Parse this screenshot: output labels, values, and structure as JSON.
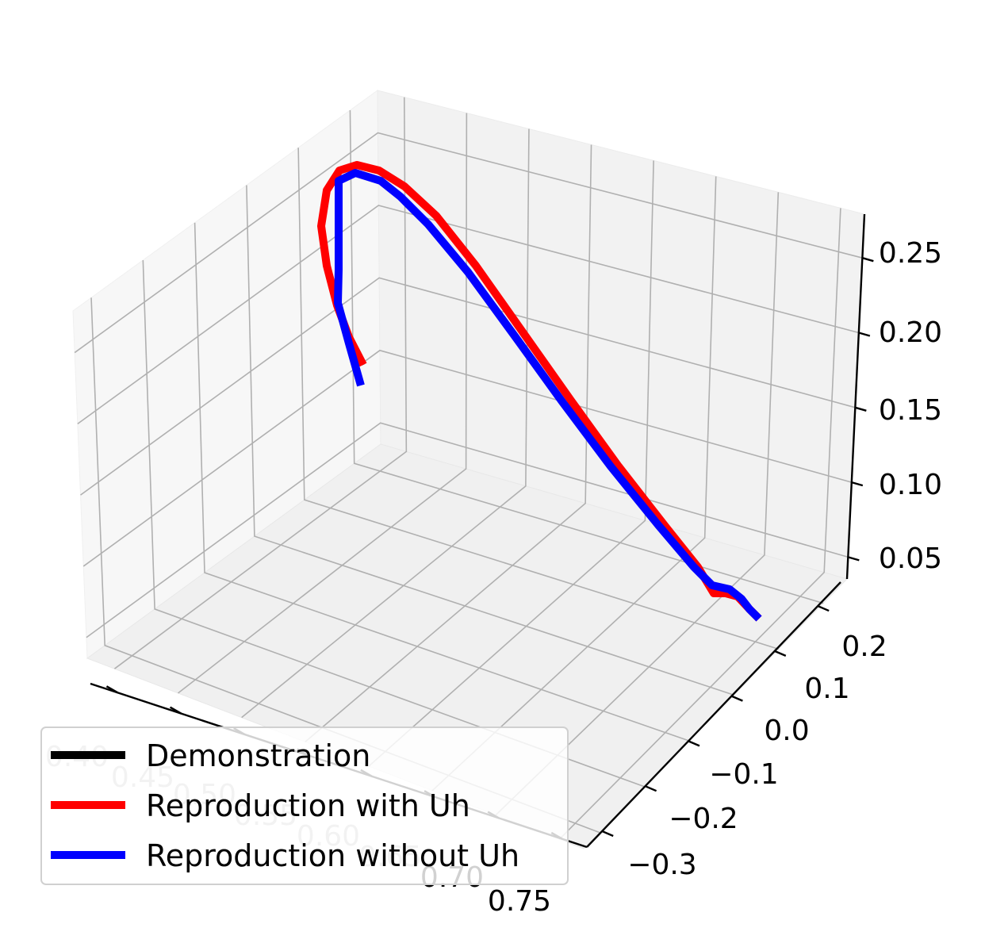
{
  "chart_data": {
    "type": "line",
    "projection": "3d",
    "title": "",
    "xlabel": "",
    "ylabel": "",
    "zlabel": "",
    "xlim": [
      0.38,
      0.77
    ],
    "ylim": [
      -0.34,
      0.24
    ],
    "zlim": [
      0.035,
      0.27
    ],
    "x_ticks": [
      "0.40",
      "0.45",
      "0.50",
      "0.55",
      "0.60",
      "0.65",
      "0.70",
      "0.75"
    ],
    "y_ticks": [
      "−0.3",
      "−0.2",
      "−0.1",
      "0.0",
      "0.1",
      "0.2"
    ],
    "z_ticks": [
      "0.05",
      "0.10",
      "0.15",
      "0.20",
      "0.25"
    ],
    "grid": true,
    "legend_position": "lower-left",
    "series": [
      {
        "name": "Demonstration",
        "color": "#000000",
        "points": [
          {
            "u": 458,
            "v": 460
          },
          {
            "u": 440,
            "v": 425
          },
          {
            "u": 425,
            "v": 385
          },
          {
            "u": 412,
            "v": 335
          },
          {
            "u": 405,
            "v": 285
          },
          {
            "u": 412,
            "v": 240
          },
          {
            "u": 428,
            "v": 215
          },
          {
            "u": 450,
            "v": 208
          },
          {
            "u": 478,
            "v": 215
          },
          {
            "u": 510,
            "v": 235
          },
          {
            "u": 550,
            "v": 272
          },
          {
            "u": 600,
            "v": 335
          },
          {
            "u": 660,
            "v": 420
          },
          {
            "u": 720,
            "v": 505
          },
          {
            "u": 780,
            "v": 588
          },
          {
            "u": 840,
            "v": 665
          },
          {
            "u": 880,
            "v": 715
          },
          {
            "u": 900,
            "v": 748
          },
          {
            "u": 915,
            "v": 748
          },
          {
            "u": 930,
            "v": 752
          },
          {
            "u": 945,
            "v": 768
          },
          {
            "u": 957,
            "v": 780
          }
        ]
      },
      {
        "name": "Reproduction with Uh",
        "color": "#ff0000",
        "points": [
          {
            "u": 458,
            "v": 460
          },
          {
            "u": 440,
            "v": 425
          },
          {
            "u": 425,
            "v": 385
          },
          {
            "u": 412,
            "v": 335
          },
          {
            "u": 405,
            "v": 285
          },
          {
            "u": 412,
            "v": 240
          },
          {
            "u": 428,
            "v": 215
          },
          {
            "u": 450,
            "v": 208
          },
          {
            "u": 478,
            "v": 215
          },
          {
            "u": 510,
            "v": 235
          },
          {
            "u": 550,
            "v": 272
          },
          {
            "u": 600,
            "v": 335
          },
          {
            "u": 660,
            "v": 420
          },
          {
            "u": 720,
            "v": 505
          },
          {
            "u": 780,
            "v": 588
          },
          {
            "u": 840,
            "v": 665
          },
          {
            "u": 880,
            "v": 715
          },
          {
            "u": 900,
            "v": 748
          },
          {
            "u": 915,
            "v": 748
          },
          {
            "u": 930,
            "v": 752
          },
          {
            "u": 945,
            "v": 768
          },
          {
            "u": 957,
            "v": 780
          }
        ]
      },
      {
        "name": "Reproduction without Uh",
        "color": "#0000ff",
        "points": [
          {
            "u": 455,
            "v": 486
          },
          {
            "u": 440,
            "v": 433
          },
          {
            "u": 426,
            "v": 382
          },
          {
            "u": 427,
            "v": 340
          },
          {
            "u": 427,
            "v": 228
          },
          {
            "u": 448,
            "v": 218
          },
          {
            "u": 480,
            "v": 228
          },
          {
            "u": 505,
            "v": 248
          },
          {
            "u": 540,
            "v": 283
          },
          {
            "u": 590,
            "v": 343
          },
          {
            "u": 650,
            "v": 425
          },
          {
            "u": 710,
            "v": 508
          },
          {
            "u": 770,
            "v": 588
          },
          {
            "u": 830,
            "v": 662
          },
          {
            "u": 875,
            "v": 715
          },
          {
            "u": 898,
            "v": 738
          },
          {
            "u": 920,
            "v": 743
          },
          {
            "u": 935,
            "v": 755
          },
          {
            "u": 945,
            "v": 768
          },
          {
            "u": 957,
            "v": 780
          }
        ]
      }
    ]
  }
}
